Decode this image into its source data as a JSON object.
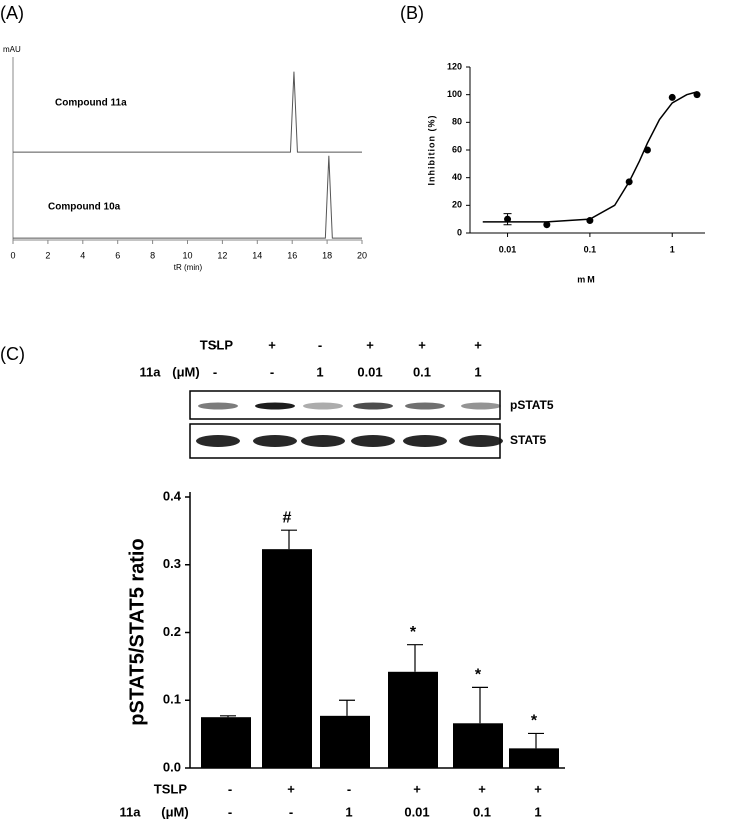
{
  "chart_data": [
    {
      "type": "line",
      "panel": "(A)",
      "y_label": "mAU",
      "x_label": "tR (min)",
      "xlim": [
        0,
        20
      ],
      "xticks": [
        0,
        2,
        4,
        6,
        8,
        10,
        12,
        14,
        16,
        18,
        20
      ],
      "ylim": [
        0,
        100
      ],
      "color": "#555555",
      "x": [
        0,
        15.9,
        16.1,
        16.3,
        17.9,
        18.1,
        18.3,
        20
      ],
      "series": [
        {
          "name": "Compound 11a",
          "values": [
            48,
            48,
            92,
            48,
            48,
            48,
            48,
            48
          ]
        },
        {
          "name": "Compound 10a",
          "values": [
            1,
            1,
            1,
            1,
            1,
            46,
            1,
            1
          ]
        }
      ]
    },
    {
      "type": "scatter",
      "panel": "(B)",
      "y_label": "Inhibition (%)",
      "x_label": "mM",
      "log_x": true,
      "xlim": [
        0.0035,
        2.5
      ],
      "xticks": [
        0.01,
        0.1,
        1
      ],
      "ylim": [
        0,
        120
      ],
      "yticks": [
        0,
        20,
        40,
        60,
        80,
        100,
        120
      ],
      "color": "#000000",
      "x": [
        0.01,
        0.03,
        0.1,
        0.3,
        0.5,
        1,
        2
      ],
      "values": [
        10,
        6,
        9,
        37,
        60,
        98,
        100
      ],
      "errors": [
        4,
        0,
        0,
        0,
        0,
        0,
        0
      ],
      "fit": {
        "x": [
          0.005,
          0.01,
          0.03,
          0.1,
          0.2,
          0.3,
          0.4,
          0.5,
          0.7,
          1,
          1.5,
          2
        ],
        "values": [
          8,
          8,
          8,
          10,
          20,
          37,
          52,
          65,
          82,
          94,
          100,
          102
        ]
      }
    },
    {
      "type": "blot",
      "panel": "(C)",
      "rows": [
        {
          "label": "TSLP",
          "values": [
            "-",
            "+",
            "-",
            "+",
            "+",
            "+"
          ]
        },
        {
          "label": "11a",
          "unit": "(μM)",
          "values": [
            "-",
            "-",
            "1",
            "0.01",
            "0.1",
            "1"
          ]
        }
      ],
      "bands": [
        "pSTAT5",
        "STAT5"
      ]
    },
    {
      "type": "bar",
      "y_label": "pSTAT5/STAT5 ratio",
      "color": "#000000",
      "ylim": [
        0,
        0.4
      ],
      "yticks": [
        {
          "value": 0,
          "label": "0.0"
        },
        0.1,
        0.2,
        0.3,
        0.4
      ],
      "values": [
        0.075,
        0.323,
        0.077,
        0.142,
        0.066,
        0.029
      ],
      "errors": [
        0.002,
        0.028,
        0.023,
        0.04,
        0.053,
        0.022
      ],
      "annotations": [
        null,
        "#",
        null,
        "*",
        "*",
        "*"
      ],
      "rows": [
        {
          "label": "TSLP",
          "values": [
            "-",
            "+",
            "-",
            "+",
            "+",
            "+"
          ]
        },
        {
          "label": "11a",
          "unit": "(μM)",
          "values": [
            "-",
            "-",
            "1",
            "0.01",
            "0.1",
            "1"
          ]
        }
      ]
    }
  ]
}
